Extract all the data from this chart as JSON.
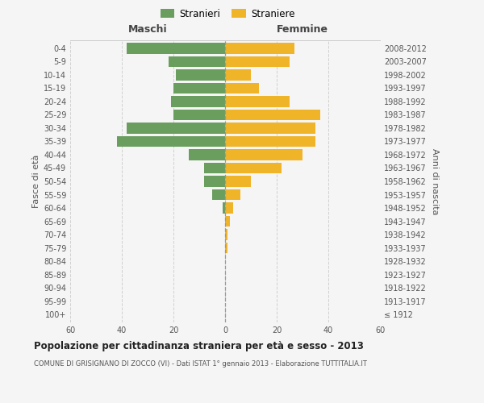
{
  "age_groups": [
    "100+",
    "95-99",
    "90-94",
    "85-89",
    "80-84",
    "75-79",
    "70-74",
    "65-69",
    "60-64",
    "55-59",
    "50-54",
    "45-49",
    "40-44",
    "35-39",
    "30-34",
    "25-29",
    "20-24",
    "15-19",
    "10-14",
    "5-9",
    "0-4"
  ],
  "birth_years": [
    "≤ 1912",
    "1913-1917",
    "1918-1922",
    "1923-1927",
    "1928-1932",
    "1933-1937",
    "1938-1942",
    "1943-1947",
    "1948-1952",
    "1953-1957",
    "1958-1962",
    "1963-1967",
    "1968-1972",
    "1973-1977",
    "1978-1982",
    "1983-1987",
    "1988-1992",
    "1993-1997",
    "1998-2002",
    "2003-2007",
    "2008-2012"
  ],
  "males": [
    0,
    0,
    0,
    0,
    0,
    0,
    0,
    0,
    1,
    5,
    8,
    8,
    14,
    42,
    38,
    20,
    21,
    20,
    19,
    22,
    38
  ],
  "females": [
    0,
    0,
    0,
    0,
    0,
    1,
    1,
    2,
    3,
    6,
    10,
    22,
    30,
    35,
    35,
    37,
    25,
    13,
    10,
    25,
    27
  ],
  "male_color": "#6a9e5f",
  "female_color": "#f0b429",
  "background_color": "#f5f5f5",
  "grid_color": "#d0d0d0",
  "title": "Popolazione per cittadinanza straniera per età e sesso - 2013",
  "subtitle": "COMUNE DI GRISIGNANO DI ZOCCO (VI) - Dati ISTAT 1° gennaio 2013 - Elaborazione TUTTITALIA.IT",
  "xlabel_left": "Maschi",
  "xlabel_right": "Femmine",
  "ylabel_left": "Fasce di età",
  "ylabel_right": "Anni di nascita",
  "legend_male": "Stranieri",
  "legend_female": "Straniere",
  "xlim": 60,
  "bar_height": 0.8
}
